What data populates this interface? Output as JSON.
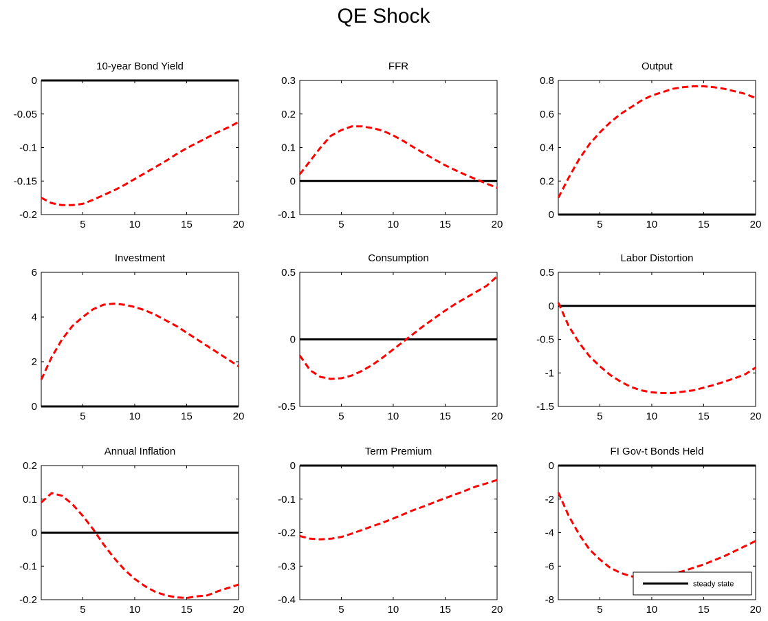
{
  "figure": {
    "title": "QE Shock",
    "legend": {
      "label": "steady state",
      "placement": "lower-right of last panel"
    },
    "colors": {
      "response": "#ff0000",
      "steady_state": "#000000",
      "axes": "#000000",
      "background": "#ffffff"
    }
  },
  "chart_data": [
    {
      "type": "line",
      "title": "10-year Bond Yield",
      "xlabel": "",
      "ylabel": "",
      "xlim": [
        1,
        20
      ],
      "ylim": [
        -0.2,
        0
      ],
      "xticks": [
        5,
        10,
        15,
        20
      ],
      "yticks": [
        "-0.2",
        "-0.15",
        "-0.1",
        "-0.05",
        "0"
      ],
      "steady_state": 0,
      "x": [
        1,
        2,
        3,
        4,
        5,
        6,
        7,
        8,
        9,
        10,
        11,
        12,
        13,
        14,
        15,
        16,
        17,
        18,
        19,
        20
      ],
      "series": [
        {
          "values": [
            -0.175,
            -0.183,
            -0.186,
            -0.186,
            -0.184,
            -0.178,
            -0.171,
            -0.164,
            -0.156,
            -0.147,
            -0.138,
            -0.129,
            -0.12,
            -0.11,
            -0.101,
            -0.093,
            -0.085,
            -0.077,
            -0.07,
            -0.062
          ]
        }
      ]
    },
    {
      "type": "line",
      "title": "FFR",
      "xlabel": "",
      "ylabel": "",
      "xlim": [
        1,
        20
      ],
      "ylim": [
        -0.1,
        0.3
      ],
      "xticks": [
        5,
        10,
        15,
        20
      ],
      "yticks": [
        "-0.1",
        "0",
        "0.1",
        "0.2",
        "0.3"
      ],
      "steady_state": 0,
      "x": [
        1,
        2,
        3,
        4,
        5,
        6,
        7,
        8,
        9,
        10,
        11,
        12,
        13,
        14,
        15,
        16,
        17,
        18,
        19,
        20
      ],
      "series": [
        {
          "values": [
            0.02,
            0.06,
            0.1,
            0.135,
            0.152,
            0.163,
            0.163,
            0.158,
            0.15,
            0.136,
            0.119,
            0.1,
            0.082,
            0.064,
            0.047,
            0.032,
            0.018,
            0.005,
            -0.008,
            -0.02
          ]
        }
      ]
    },
    {
      "type": "line",
      "title": "Output",
      "xlabel": "",
      "ylabel": "",
      "xlim": [
        1,
        20
      ],
      "ylim": [
        0,
        0.8
      ],
      "xticks": [
        5,
        10,
        15,
        20
      ],
      "yticks": [
        "0",
        "0.2",
        "0.4",
        "0.6",
        "0.8"
      ],
      "steady_state": 0,
      "x": [
        1,
        2,
        3,
        4,
        5,
        6,
        7,
        8,
        9,
        10,
        11,
        12,
        13,
        14,
        15,
        16,
        17,
        18,
        19,
        20
      ],
      "series": [
        {
          "values": [
            0.1,
            0.22,
            0.33,
            0.42,
            0.49,
            0.55,
            0.6,
            0.64,
            0.68,
            0.71,
            0.73,
            0.75,
            0.76,
            0.765,
            0.765,
            0.76,
            0.75,
            0.735,
            0.72,
            0.695
          ]
        }
      ]
    },
    {
      "type": "line",
      "title": "Investment",
      "xlabel": "",
      "ylabel": "",
      "xlim": [
        1,
        20
      ],
      "ylim": [
        0,
        6
      ],
      "xticks": [
        5,
        10,
        15,
        20
      ],
      "yticks": [
        "0",
        "2",
        "4",
        "6"
      ],
      "steady_state": 0,
      "x": [
        1,
        2,
        3,
        4,
        5,
        6,
        7,
        8,
        9,
        10,
        11,
        12,
        13,
        14,
        15,
        16,
        17,
        18,
        19,
        20
      ],
      "series": [
        {
          "values": [
            1.2,
            2.2,
            3.0,
            3.6,
            4.0,
            4.35,
            4.55,
            4.6,
            4.55,
            4.45,
            4.3,
            4.1,
            3.85,
            3.6,
            3.3,
            3.0,
            2.7,
            2.4,
            2.1,
            1.8
          ]
        }
      ]
    },
    {
      "type": "line",
      "title": "Consumption",
      "xlabel": "",
      "ylabel": "",
      "xlim": [
        1,
        20
      ],
      "ylim": [
        -0.5,
        0.5
      ],
      "xticks": [
        5,
        10,
        15,
        20
      ],
      "yticks": [
        "-0.5",
        "0",
        "0.5"
      ],
      "steady_state": 0,
      "x": [
        1,
        2,
        3,
        4,
        5,
        6,
        7,
        8,
        9,
        10,
        11,
        12,
        13,
        14,
        15,
        16,
        17,
        18,
        19,
        20
      ],
      "series": [
        {
          "values": [
            -0.12,
            -0.23,
            -0.28,
            -0.295,
            -0.29,
            -0.27,
            -0.235,
            -0.19,
            -0.135,
            -0.075,
            -0.015,
            0.045,
            0.105,
            0.16,
            0.215,
            0.265,
            0.31,
            0.355,
            0.4,
            0.47
          ]
        }
      ]
    },
    {
      "type": "line",
      "title": "Labor Distortion",
      "xlabel": "",
      "ylabel": "",
      "xlim": [
        1,
        20
      ],
      "ylim": [
        -1.5,
        0.5
      ],
      "xticks": [
        5,
        10,
        15,
        20
      ],
      "yticks": [
        "-1.5",
        "-1",
        "-0.5",
        "0",
        "0.5"
      ],
      "steady_state": 0,
      "x": [
        1,
        2,
        3,
        4,
        5,
        6,
        7,
        8,
        9,
        10,
        11,
        12,
        13,
        14,
        15,
        16,
        17,
        18,
        19,
        20
      ],
      "series": [
        {
          "values": [
            0.05,
            -0.3,
            -0.55,
            -0.75,
            -0.9,
            -1.03,
            -1.13,
            -1.21,
            -1.26,
            -1.29,
            -1.3,
            -1.3,
            -1.28,
            -1.26,
            -1.22,
            -1.18,
            -1.13,
            -1.08,
            -1.02,
            -0.92
          ]
        }
      ]
    },
    {
      "type": "line",
      "title": "Annual Inflation",
      "xlabel": "",
      "ylabel": "",
      "xlim": [
        1,
        20
      ],
      "ylim": [
        -0.2,
        0.2
      ],
      "xticks": [
        5,
        10,
        15,
        20
      ],
      "yticks": [
        "-0.2",
        "-0.1",
        "0",
        "0.1",
        "0.2"
      ],
      "steady_state": 0,
      "x": [
        1,
        2,
        3,
        4,
        5,
        6,
        7,
        8,
        9,
        10,
        11,
        12,
        13,
        14,
        15,
        16,
        17,
        18,
        19,
        20
      ],
      "series": [
        {
          "values": [
            0.09,
            0.118,
            0.11,
            0.085,
            0.05,
            0.01,
            -0.035,
            -0.075,
            -0.11,
            -0.138,
            -0.16,
            -0.177,
            -0.187,
            -0.193,
            -0.195,
            -0.19,
            -0.187,
            -0.175,
            -0.165,
            -0.155
          ]
        }
      ]
    },
    {
      "type": "line",
      "title": "Term Premium",
      "xlabel": "",
      "ylabel": "",
      "xlim": [
        1,
        20
      ],
      "ylim": [
        -0.4,
        0
      ],
      "xticks": [
        5,
        10,
        15,
        20
      ],
      "yticks": [
        "-0.4",
        "-0.3",
        "-0.2",
        "-0.1",
        "0"
      ],
      "steady_state": 0,
      "x": [
        1,
        2,
        3,
        4,
        5,
        6,
        7,
        8,
        9,
        10,
        11,
        12,
        13,
        14,
        15,
        16,
        17,
        18,
        19,
        20
      ],
      "series": [
        {
          "values": [
            -0.21,
            -0.218,
            -0.22,
            -0.218,
            -0.213,
            -0.203,
            -0.192,
            -0.181,
            -0.17,
            -0.158,
            -0.145,
            -0.132,
            -0.121,
            -0.109,
            -0.097,
            -0.086,
            -0.074,
            -0.062,
            -0.053,
            -0.043
          ]
        }
      ]
    },
    {
      "type": "line",
      "title": "FI Gov-t Bonds Held",
      "xlabel": "",
      "ylabel": "",
      "xlim": [
        1,
        20
      ],
      "ylim": [
        -8,
        0
      ],
      "xticks": [
        5,
        10,
        15,
        20
      ],
      "yticks": [
        "-8",
        "-6",
        "-4",
        "-2",
        "0"
      ],
      "steady_state": 0,
      "x": [
        1,
        2,
        3,
        4,
        5,
        6,
        7,
        8,
        9,
        10,
        11,
        12,
        13,
        14,
        15,
        16,
        17,
        18,
        19,
        20
      ],
      "series": [
        {
          "values": [
            -1.6,
            -3.0,
            -4.1,
            -5.0,
            -5.6,
            -6.1,
            -6.4,
            -6.6,
            -6.7,
            -6.65,
            -6.55,
            -6.45,
            -6.3,
            -6.1,
            -5.9,
            -5.65,
            -5.4,
            -5.1,
            -4.8,
            -4.5
          ]
        }
      ]
    }
  ]
}
